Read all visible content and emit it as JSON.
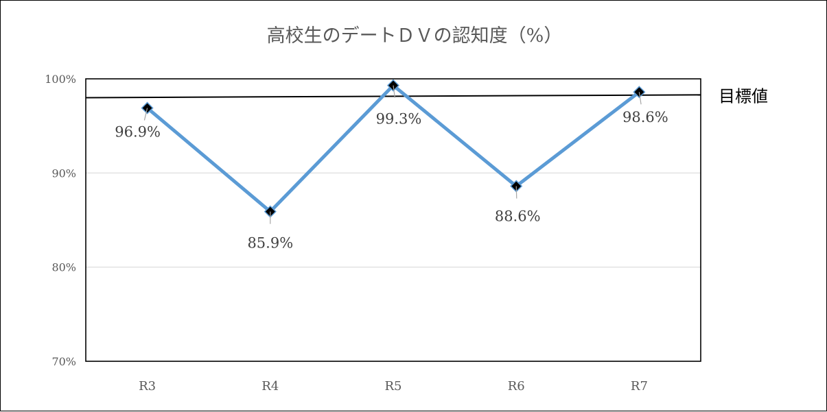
{
  "chart_data": {
    "type": "line",
    "title": "高校生のデートＤＶの認知度（%）",
    "xlabel": "",
    "ylabel": "",
    "categories": [
      "R3",
      "R4",
      "R5",
      "R6",
      "R7"
    ],
    "series": [
      {
        "values": [
          96.9,
          85.9,
          99.3,
          88.6,
          98.6
        ],
        "data_labels": [
          "96.9%",
          "85.9%",
          "99.3%",
          "88.6%",
          "98.6%"
        ],
        "color": "#5B9BD5",
        "marker_color": "#000000"
      }
    ],
    "ylim": [
      70,
      100
    ],
    "yticks": [
      70,
      80,
      90,
      100
    ],
    "ytick_labels": [
      "70%",
      "80%",
      "90%",
      "100%"
    ],
    "grid": true,
    "target_line": {
      "label": "目標値",
      "start_value": 98.0,
      "end_value": 98.3,
      "color": "#000000"
    }
  }
}
